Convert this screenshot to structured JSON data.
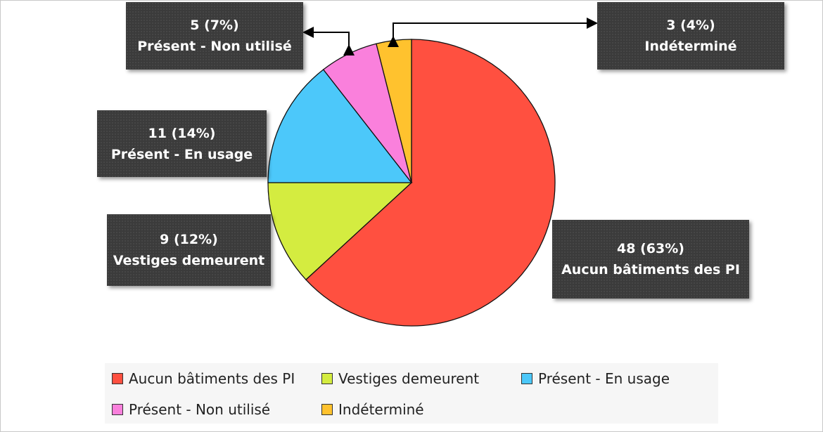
{
  "chart_data": {
    "type": "pie",
    "slices": [
      {
        "label": "Aucun bâtiments des PI",
        "value": 48,
        "pct": "63%",
        "color": "#ff5040",
        "box": "48 (63%)"
      },
      {
        "label": "Vestiges demeurent",
        "value": 9,
        "pct": "12%",
        "color": "#d4ec40",
        "box": "9 (12%)"
      },
      {
        "label": "Présent - En usage",
        "value": 11,
        "pct": "14%",
        "color": "#4cc8fa",
        "box": "11 (14%)",
        "box_label": "Présent  - En usage"
      },
      {
        "label": "Présent - Non utilisé",
        "value": 5,
        "pct": "7%",
        "color": "#fa80dc",
        "box": "5 (7%)"
      },
      {
        "label": "Indéterminé",
        "value": 3,
        "pct": "4%",
        "color": "#ffc22e",
        "box": "3 (4%)"
      }
    ],
    "start": "top",
    "direction": "clockwise",
    "legend": "bottom"
  }
}
